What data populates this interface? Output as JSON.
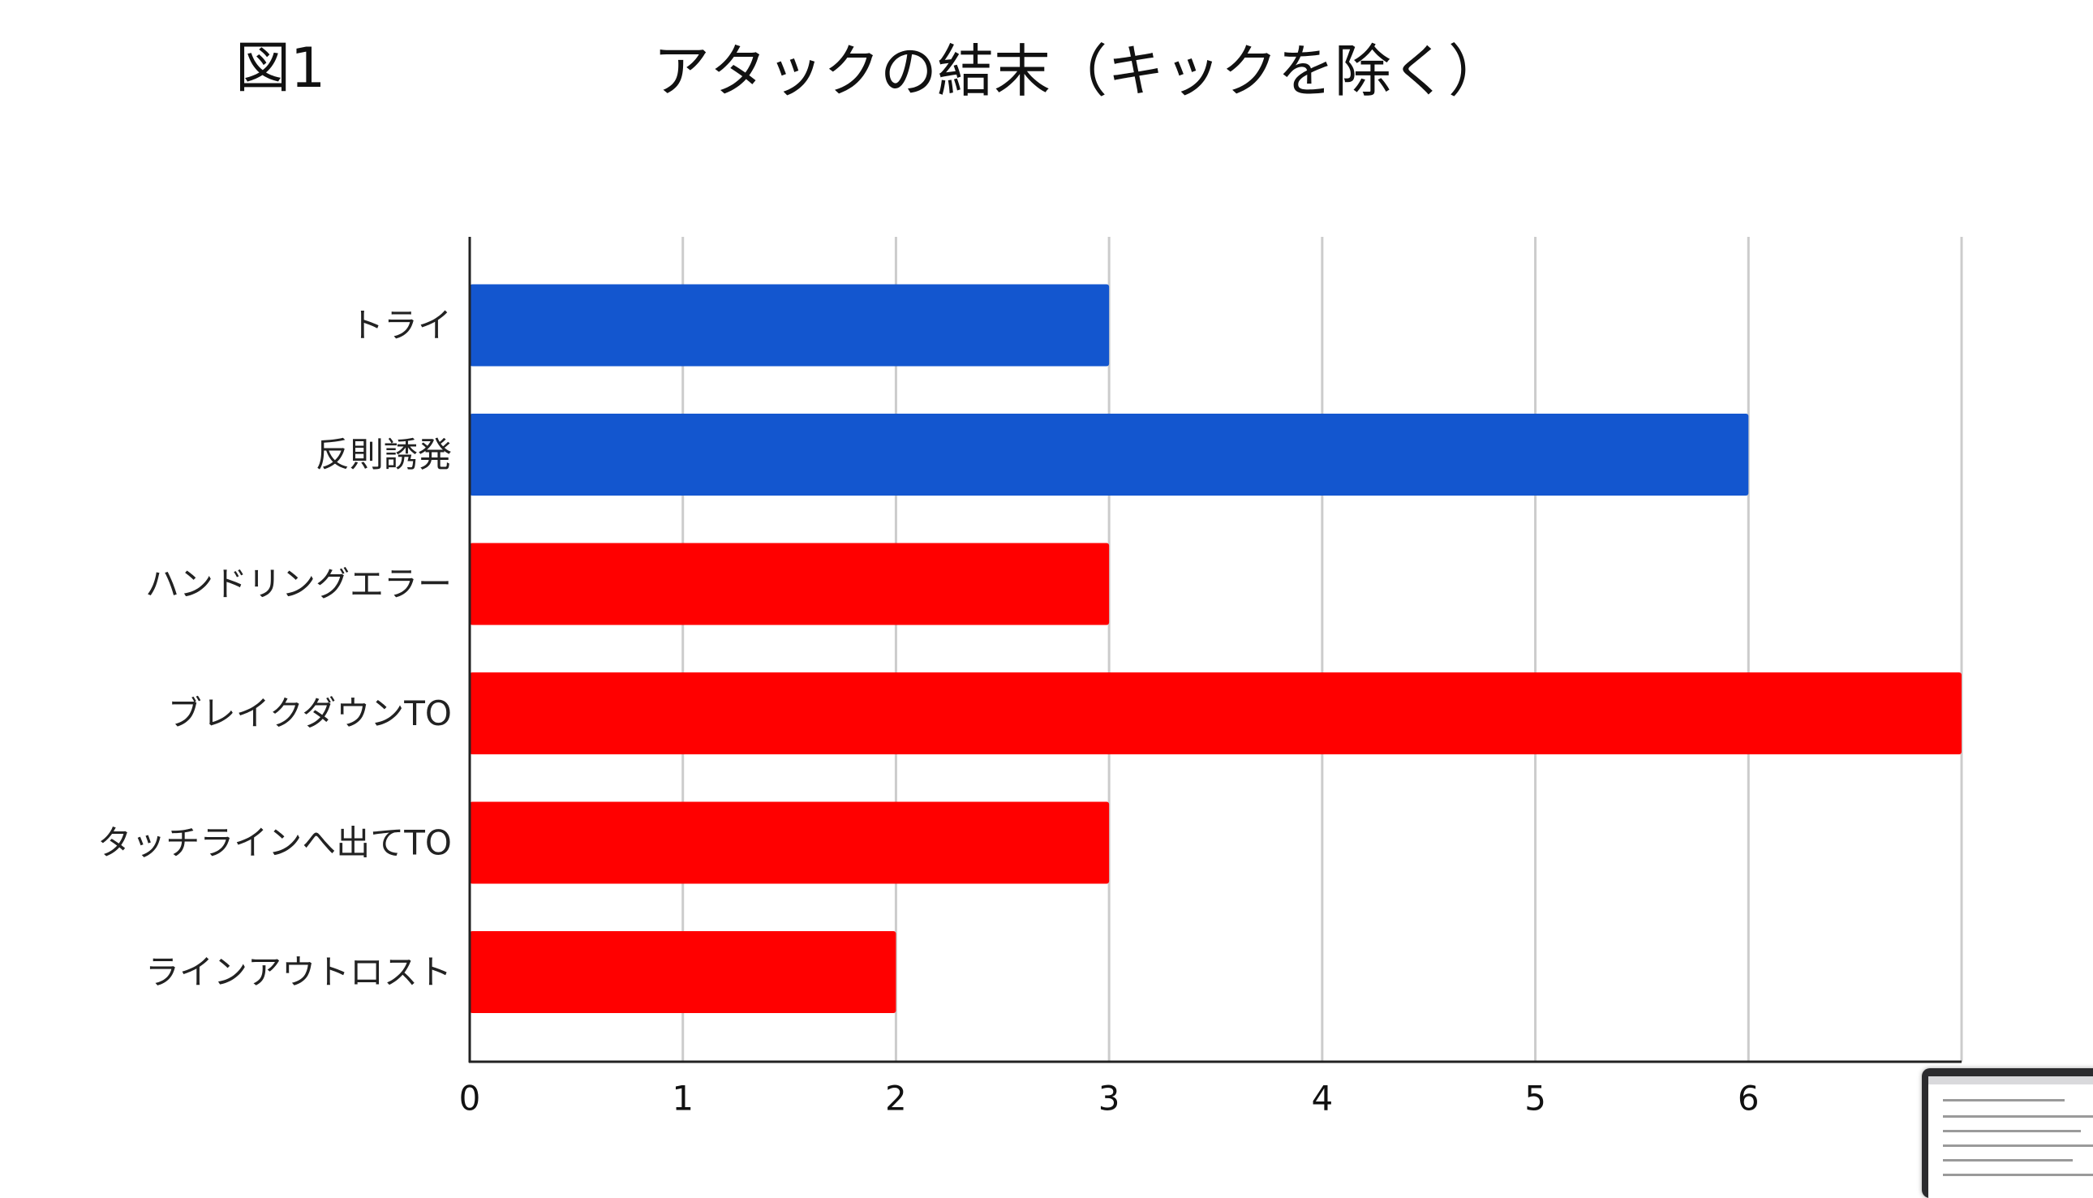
{
  "figure_label": "図1",
  "title": "アタックの結末（キックを除く）",
  "colors": {
    "blue": "#1356CF",
    "red": "#FF0000",
    "grid": "#CCCCCC",
    "axis": "#222222"
  },
  "chart_data": {
    "type": "bar",
    "orientation": "horizontal",
    "title": "アタックの結末（キックを除く）",
    "categories": [
      "トライ",
      "反則誘発",
      "ハンドリングエラー",
      "ブレイクダウンTO",
      "タッチラインへ出てTO",
      "ラインアウトロスト"
    ],
    "values": [
      3,
      6,
      3,
      7,
      3,
      2
    ],
    "bar_colors": [
      "#1356CF",
      "#1356CF",
      "#FF0000",
      "#FF0000",
      "#FF0000",
      "#FF0000"
    ],
    "xlim": [
      0,
      7
    ],
    "x_ticks": [
      "0",
      "1",
      "2",
      "3",
      "4",
      "5",
      "6"
    ],
    "grid": true,
    "legend": "none",
    "xlabel": "",
    "ylabel": ""
  }
}
